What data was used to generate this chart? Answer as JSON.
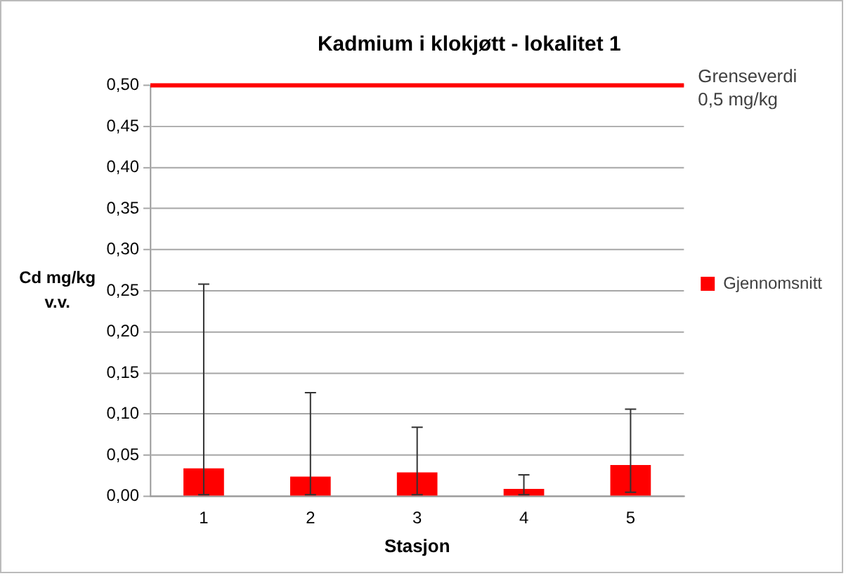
{
  "chart_data": {
    "type": "bar",
    "title": "Kadmium i klokjøtt - lokalitet 1",
    "xlabel": "Stasjon",
    "ylabel": "Cd mg/kg\nv.v.",
    "categories": [
      "1",
      "2",
      "3",
      "4",
      "5"
    ],
    "series": [
      {
        "name": "Gjennomsnitt",
        "color": "#ff0000",
        "values": [
          0.034,
          0.024,
          0.029,
          0.009,
          0.038
        ],
        "errors": [
          [
            0.002,
            0.258
          ],
          [
            0.002,
            0.126
          ],
          [
            0.002,
            0.084
          ],
          [
            0.002,
            0.026
          ],
          [
            0.005,
            0.106
          ]
        ]
      }
    ],
    "ylim": [
      0,
      0.5
    ],
    "yticks": [
      {
        "value": 0,
        "label": "0,00"
      },
      {
        "value": 0.05,
        "label": "0,05"
      },
      {
        "value": 0.1,
        "label": "0,10"
      },
      {
        "value": 0.15,
        "label": "0,15"
      },
      {
        "value": 0.2,
        "label": "0,20"
      },
      {
        "value": 0.25,
        "label": "0,25"
      },
      {
        "value": 0.3,
        "label": "0,30"
      },
      {
        "value": 0.35,
        "label": "0,35"
      },
      {
        "value": 0.4,
        "label": "0,40"
      },
      {
        "value": 0.45,
        "label": "0,45"
      },
      {
        "value": 0.5,
        "label": "0,50"
      }
    ],
    "ref_lines": [
      {
        "axis": "y",
        "value": 0.5,
        "label": "Grenseverdi\n0,5 mg/kg",
        "color": "#ff0000"
      }
    ],
    "grid": "y",
    "legend": "right"
  }
}
